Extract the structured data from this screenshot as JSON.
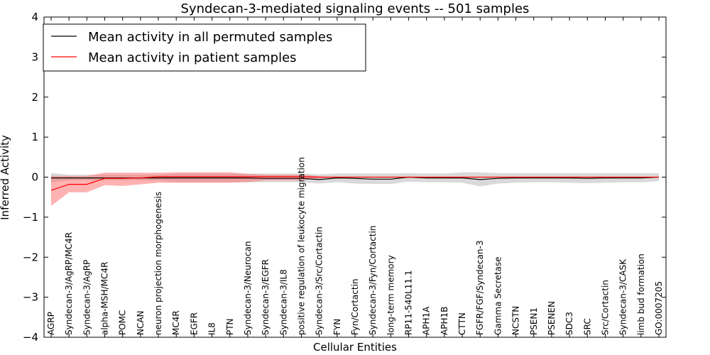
{
  "chart_data": {
    "type": "line",
    "title": "Syndecan-3-mediated signaling events -- 501 samples",
    "xlabel": "Cellular Entities",
    "ylabel": "Inferred Activity",
    "ylim": [
      -4,
      4
    ],
    "yticks": [
      4,
      3,
      2,
      1,
      0,
      -1,
      -2,
      -3,
      -4
    ],
    "ytick_labels": [
      "4",
      "3",
      "2",
      "1",
      "0",
      "−1",
      "−2",
      "−3",
      "−4"
    ],
    "legend_location": "upper-left",
    "categories": [
      "AGRP",
      "Syndecan-3/AgRP/MC4R",
      "Syndecan-3/AgRP",
      "alpha-MSH/MC4R",
      "POMC",
      "NCAN",
      "neuron projection morphogenesis",
      "MC4R",
      "EGFR",
      "IL8",
      "PTN",
      "Syndecan-3/Neurocan",
      "Syndecan-3/EGFR",
      "Syndecan-3/IL8",
      "positive regulation of leukocyte migration",
      "Syndecan-3/Src/Cortactin",
      "FYN",
      "Fyn/Cortactin",
      "Syndecan-3/Fyn/Cortactin",
      "long-term memory",
      "RP11-540L11.1",
      "APH1A",
      "APH1B",
      "CTTN",
      "FGFR/FGF/Syndecan-3",
      "Gamma Secretase",
      "NCSTN",
      "PSEN1",
      "PSENEN",
      "SDC3",
      "SRC",
      "Src/Cortactin",
      "Syndecan-3/CASK",
      "limb bud formation",
      "GO:0007205"
    ],
    "series": [
      {
        "name": "Mean activity in all permuted samples",
        "color": "#000000",
        "band_color": "#aaaaaa",
        "values": [
          -0.02,
          -0.02,
          -0.02,
          -0.02,
          -0.02,
          -0.02,
          -0.02,
          -0.02,
          -0.02,
          -0.02,
          -0.02,
          -0.02,
          -0.03,
          -0.03,
          -0.03,
          -0.06,
          -0.02,
          -0.03,
          -0.05,
          -0.05,
          0.0,
          -0.02,
          -0.02,
          -0.02,
          -0.06,
          -0.03,
          -0.02,
          -0.02,
          -0.02,
          -0.02,
          -0.03,
          -0.02,
          -0.02,
          -0.02,
          0.0
        ],
        "lower": [
          -0.13,
          -0.08,
          -0.08,
          -0.08,
          -0.08,
          -0.08,
          -0.08,
          -0.13,
          -0.13,
          -0.13,
          -0.13,
          -0.13,
          -0.13,
          -0.13,
          -0.13,
          -0.16,
          -0.13,
          -0.16,
          -0.17,
          -0.17,
          -0.11,
          -0.13,
          -0.13,
          -0.14,
          -0.23,
          -0.16,
          -0.14,
          -0.13,
          -0.13,
          -0.14,
          -0.15,
          -0.14,
          -0.13,
          -0.13,
          -0.1
        ],
        "upper": [
          0.1,
          0.06,
          0.06,
          0.06,
          0.06,
          0.06,
          0.06,
          0.09,
          0.09,
          0.09,
          0.09,
          0.09,
          0.09,
          0.09,
          0.09,
          0.07,
          0.09,
          0.09,
          0.09,
          0.09,
          0.1,
          0.09,
          0.09,
          0.12,
          0.12,
          0.1,
          0.1,
          0.1,
          0.1,
          0.1,
          0.1,
          0.1,
          0.1,
          0.1,
          0.1
        ]
      },
      {
        "name": "Mean activity in patient samples",
        "color": "#ff0000",
        "band_color": "#ff6666",
        "values": [
          -0.33,
          -0.18,
          -0.18,
          -0.03,
          -0.03,
          -0.02,
          0.01,
          0.01,
          0.01,
          0.01,
          0.01,
          0.01,
          0.01,
          0.01,
          0.01,
          0.0,
          0.0,
          0.0,
          0.0,
          0.0,
          0.0,
          0.0,
          0.0,
          0.0,
          0.0,
          0.0,
          0.0,
          0.0,
          0.0,
          0.0,
          0.0,
          0.0,
          0.0,
          0.0,
          0.0
        ],
        "lower": [
          -0.72,
          -0.38,
          -0.38,
          -0.2,
          -0.22,
          -0.18,
          -0.14,
          -0.14,
          -0.14,
          -0.14,
          -0.14,
          -0.12,
          -0.08,
          -0.08,
          -0.08,
          -0.03,
          0.0,
          0.0,
          0.0,
          0.0,
          0.0,
          0.0,
          0.0,
          0.0,
          0.0,
          0.0,
          0.0,
          0.0,
          0.0,
          0.0,
          0.0,
          0.0,
          0.0,
          0.0,
          0.0
        ],
        "upper": [
          0.03,
          0.03,
          0.03,
          0.11,
          0.11,
          0.11,
          0.11,
          0.12,
          0.12,
          0.12,
          0.12,
          0.08,
          0.06,
          0.06,
          0.06,
          0.02,
          0.0,
          0.0,
          0.0,
          0.0,
          0.0,
          0.0,
          0.0,
          0.0,
          0.0,
          0.0,
          0.0,
          0.0,
          0.0,
          0.0,
          0.0,
          0.0,
          0.0,
          0.0,
          0.0
        ]
      }
    ]
  }
}
